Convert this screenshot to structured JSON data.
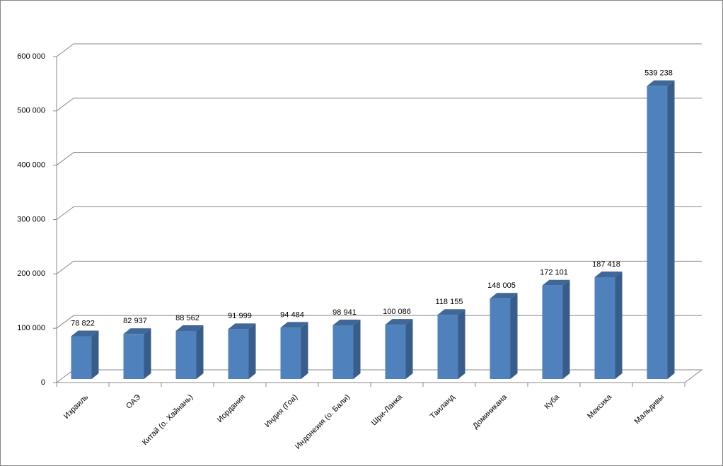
{
  "chart_data": {
    "type": "bar3d",
    "categories": [
      "Израиль",
      "ОАЭ",
      "Китай (о. Хайнань)",
      "Иордания",
      "Индия (Гоа)",
      "Индонезия (о. Бали)",
      "Шри-Ланка",
      "Таиланд",
      "Доминикана",
      "Куба",
      "Мексика",
      "Мальдивы"
    ],
    "values": [
      78822,
      82937,
      88562,
      91999,
      94484,
      98941,
      100086,
      118155,
      148005,
      172101,
      187418,
      539238
    ],
    "value_labels": [
      "78 822",
      "82 937",
      "88 562",
      "91 999",
      "94 484",
      "98 941",
      "100 086",
      "118 155",
      "148 005",
      "172 101",
      "187 418",
      "539 238"
    ],
    "color": "#4f81bd",
    "ylim": [
      0,
      600000
    ],
    "yticks": [
      0,
      {
        "value": 100000,
        "label": "100 000"
      },
      {
        "value": 200000,
        "label": "200 000"
      },
      {
        "value": 300000,
        "label": "300 000"
      },
      {
        "value": 400000,
        "label": "400 000"
      },
      {
        "value": 500000,
        "label": "500 000"
      },
      {
        "value": 600000,
        "label": "600 000"
      }
    ],
    "grid": true
  }
}
